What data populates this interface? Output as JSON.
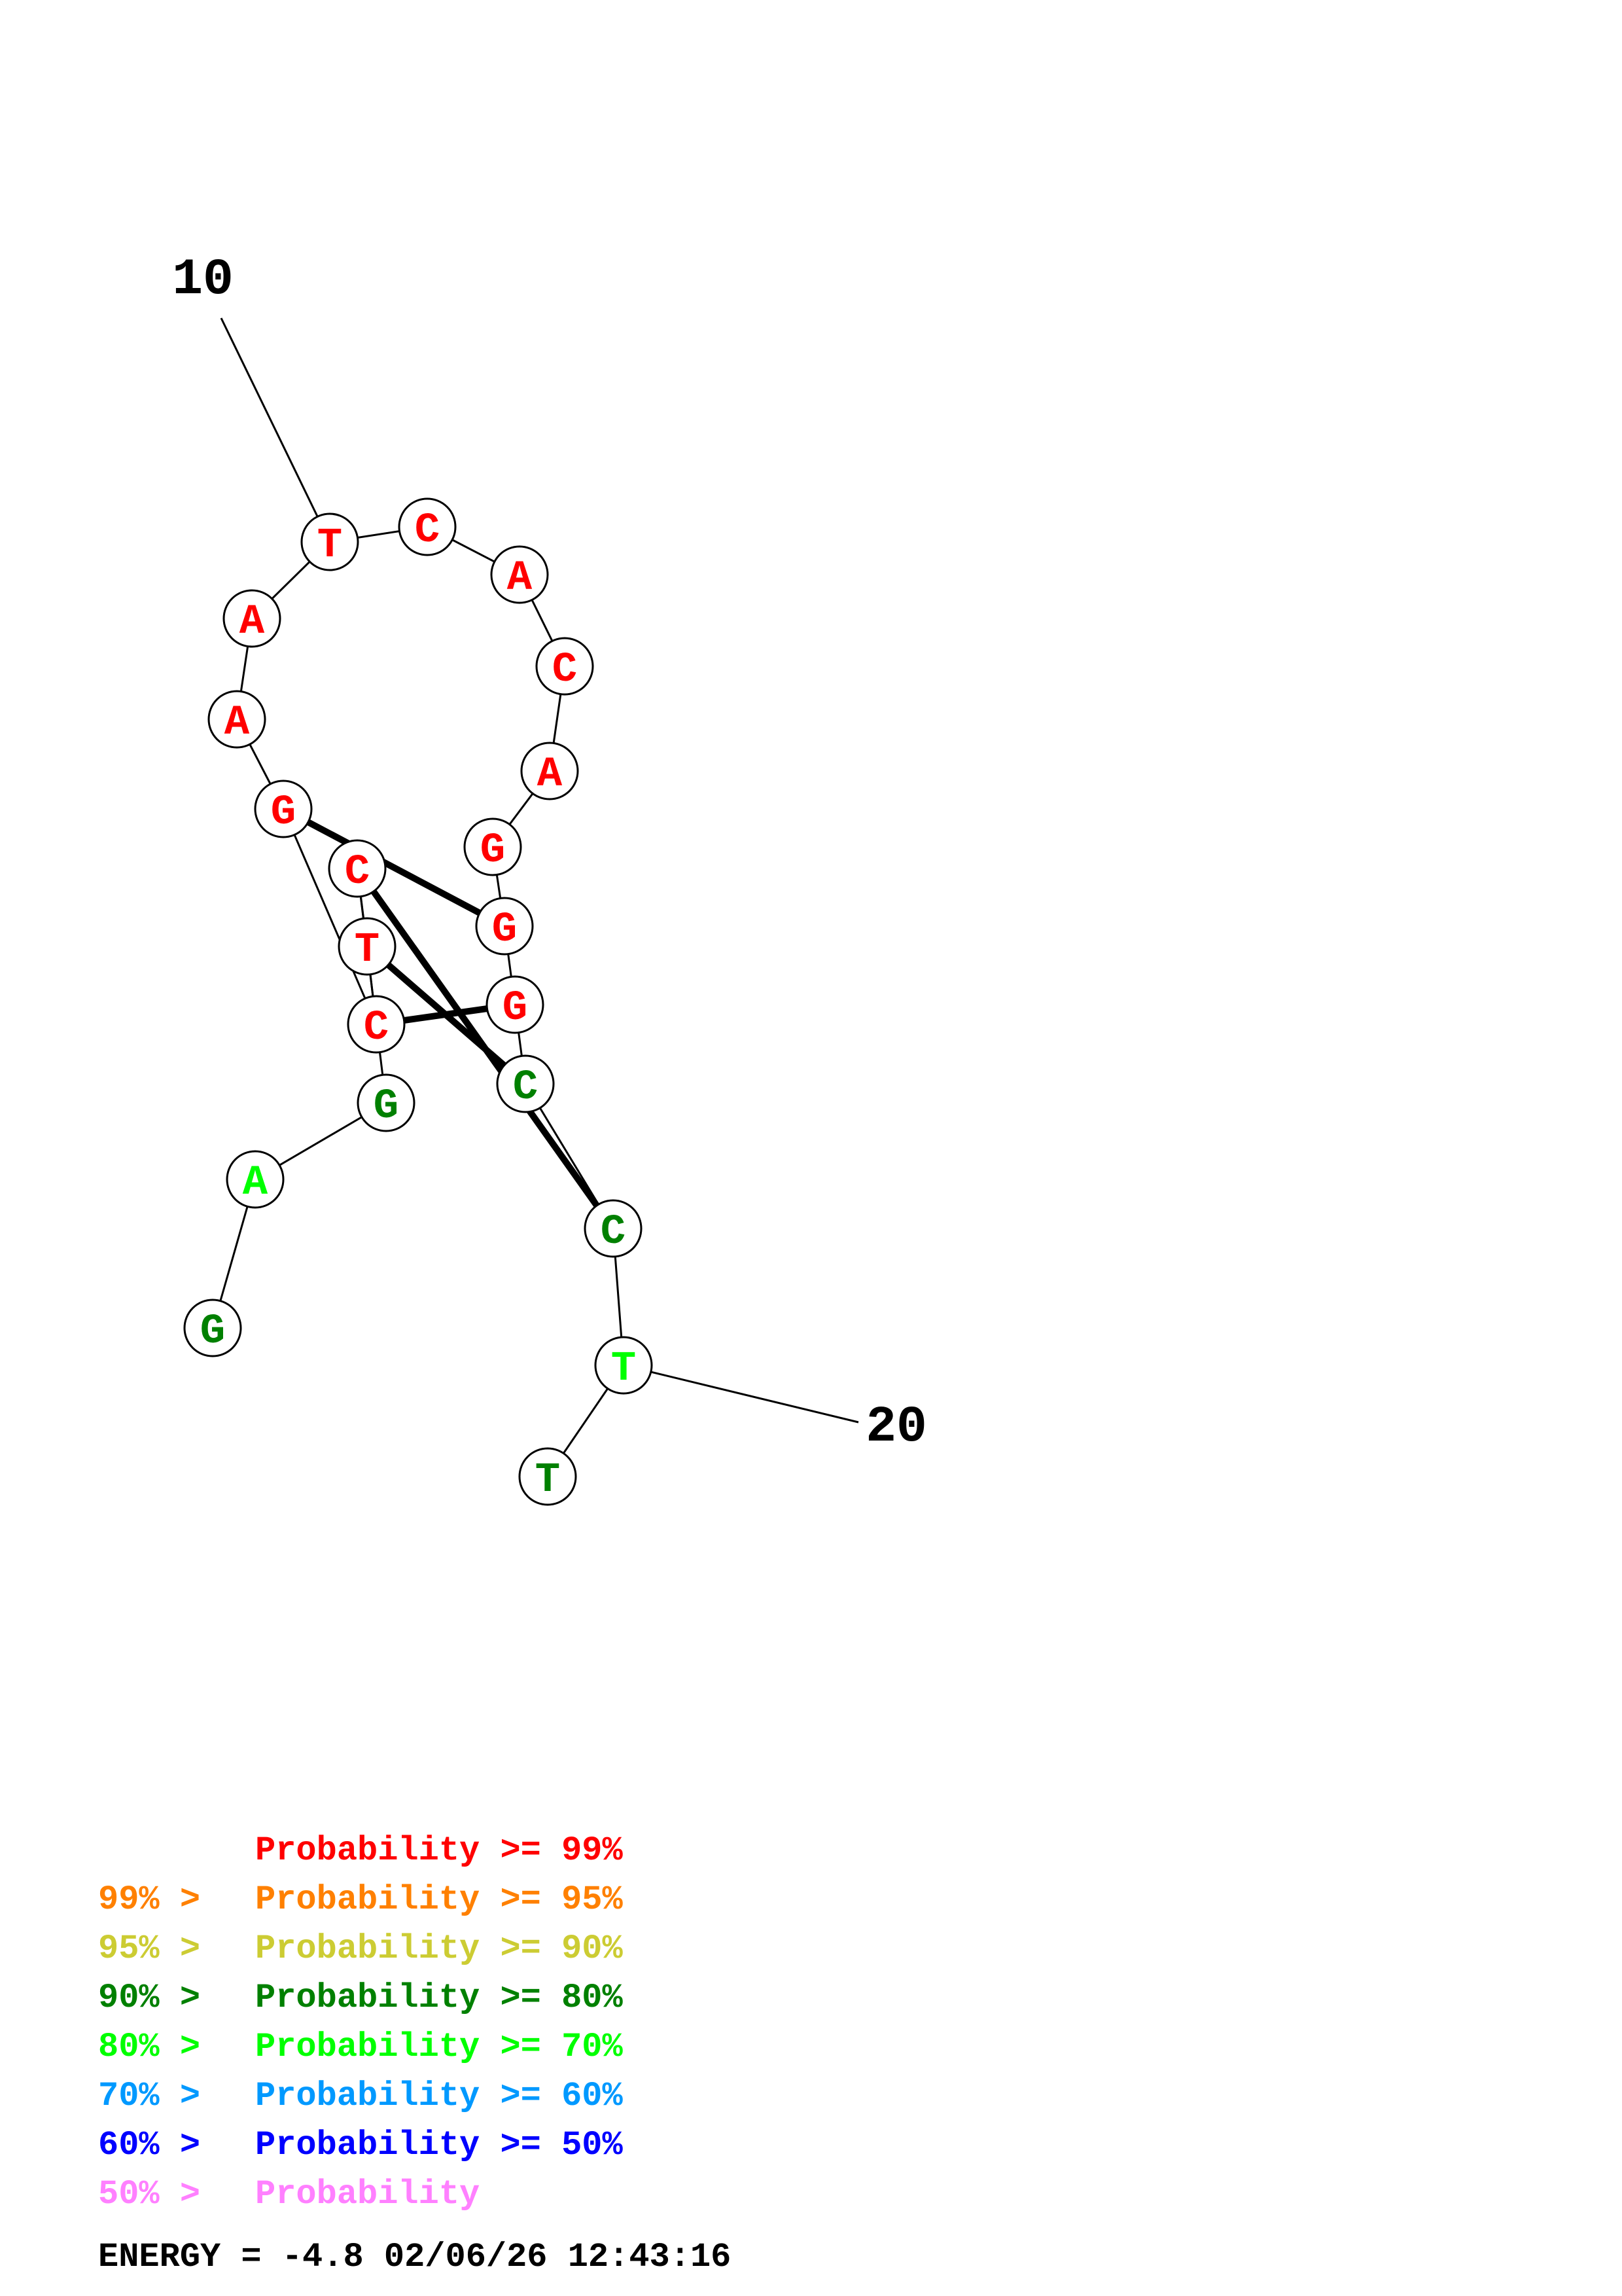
{
  "structure": {
    "nucleotides": [
      {
        "base": "G",
        "color": "#008000"
      },
      {
        "base": "A",
        "color": "#00ff00"
      },
      {
        "base": "G",
        "color": "#008000"
      },
      {
        "base": "C",
        "color": "#ff0000"
      },
      {
        "base": "T",
        "color": "#ff0000"
      },
      {
        "base": "C",
        "color": "#ff0000"
      },
      {
        "base": "G",
        "color": "#ff0000"
      },
      {
        "base": "A",
        "color": "#ff0000"
      },
      {
        "base": "A",
        "color": "#ff0000"
      },
      {
        "base": "T",
        "color": "#ff0000"
      },
      {
        "base": "C",
        "color": "#ff0000"
      },
      {
        "base": "A",
        "color": "#ff0000"
      },
      {
        "base": "C",
        "color": "#ff0000"
      },
      {
        "base": "A",
        "color": "#ff0000"
      },
      {
        "base": "G",
        "color": "#ff0000"
      },
      {
        "base": "G",
        "color": "#ff0000"
      },
      {
        "base": "G",
        "color": "#ff0000"
      },
      {
        "base": "C",
        "color": "#008000"
      },
      {
        "base": "C",
        "color": "#008000"
      },
      {
        "base": "T",
        "color": "#00ff00"
      },
      {
        "base": "T",
        "color": "#008000"
      }
    ],
    "base_pairs": [
      [
        3,
        18
      ],
      [
        4,
        17
      ],
      [
        5,
        16
      ],
      [
        6,
        15
      ]
    ],
    "position_labels": [
      {
        "index": 10,
        "text": "10"
      },
      {
        "index": 20,
        "text": "20"
      }
    ]
  },
  "legend": [
    {
      "prefix": "",
      "text": "Probability >= 99%",
      "color": "#ff0000"
    },
    {
      "prefix": "99% > ",
      "text": "Probability >= 95%",
      "color": "#ff8000"
    },
    {
      "prefix": "95% > ",
      "text": "Probability >= 90%",
      "color": "#cccc33"
    },
    {
      "prefix": "90% > ",
      "text": "Probability >= 80%",
      "color": "#008000"
    },
    {
      "prefix": "80% > ",
      "text": "Probability >= 70%",
      "color": "#00ff00"
    },
    {
      "prefix": "70% > ",
      "text": "Probability >= 60%",
      "color": "#0099ff"
    },
    {
      "prefix": "60% > ",
      "text": "Probability >= 50%",
      "color": "#0000ff"
    },
    {
      "prefix": "50% > ",
      "text": "Probability",
      "color": "#ff80ff"
    }
  ],
  "footer": {
    "energy_text": "ENERGY = -4.8  02/06/26 12:43:16"
  }
}
